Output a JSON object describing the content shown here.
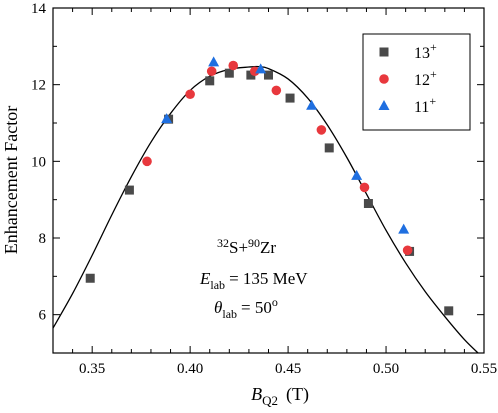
{
  "chart_data": {
    "type": "scatter",
    "xlabel": "B",
    "xlabel_sub": "Q2",
    "xlabel_unit": "(T)",
    "ylabel": "Enhancement Factor",
    "xlim": [
      0.33,
      0.55
    ],
    "ylim": [
      5,
      14
    ],
    "x_ticks": [
      0.35,
      0.4,
      0.45,
      0.5,
      0.55
    ],
    "x_tick_labels": [
      "0.35",
      "0.40",
      "0.45",
      "0.50",
      "0.55"
    ],
    "y_ticks": [
      6,
      8,
      10,
      12,
      14
    ],
    "y_tick_labels": [
      "6",
      "8",
      "10",
      "12",
      "14"
    ],
    "grid": false,
    "legend_position": "top-right",
    "series": [
      {
        "name": "13",
        "name_sup": "+",
        "marker": "square",
        "color": "#4a4a4a",
        "x": [
          0.349,
          0.369,
          0.389,
          0.41,
          0.42,
          0.431,
          0.44,
          0.451,
          0.471,
          0.491,
          0.512,
          0.532
        ],
        "y": [
          6.95,
          9.25,
          11.1,
          12.1,
          12.3,
          12.25,
          12.25,
          11.65,
          10.35,
          8.9,
          7.65,
          6.1
        ]
      },
      {
        "name": "12",
        "name_sup": "+",
        "marker": "circle",
        "color": "#e8383d",
        "x": [
          0.378,
          0.4,
          0.411,
          0.422,
          0.433,
          0.444,
          0.467,
          0.489,
          0.511
        ],
        "y": [
          10.0,
          11.75,
          12.35,
          12.5,
          12.35,
          11.85,
          10.82,
          9.32,
          7.68
        ]
      },
      {
        "name": "11",
        "name_sup": "+",
        "marker": "triangle",
        "color": "#1f6fe0",
        "x": [
          0.388,
          0.412,
          0.436,
          0.462,
          0.485,
          0.509
        ],
        "y": [
          11.1,
          12.58,
          12.4,
          11.45,
          9.62,
          8.22
        ]
      }
    ],
    "curve": {
      "x": [
        0.33,
        0.34,
        0.35,
        0.36,
        0.37,
        0.38,
        0.39,
        0.4,
        0.41,
        0.42,
        0.43,
        0.435,
        0.44,
        0.45,
        0.46,
        0.47,
        0.48,
        0.49,
        0.5,
        0.51,
        0.52,
        0.53,
        0.54,
        0.548
      ],
      "y": [
        5.65,
        6.55,
        7.55,
        8.6,
        9.6,
        10.5,
        11.25,
        11.85,
        12.22,
        12.4,
        12.46,
        12.47,
        12.42,
        12.15,
        11.65,
        10.95,
        10.1,
        9.15,
        8.2,
        7.35,
        6.6,
        5.95,
        5.35,
        4.95
      ]
    }
  },
  "annotation": {
    "line1_pre_sup": "32",
    "line1_a": "S+",
    "line1_mid_sup": "90",
    "line1_b": "Zr",
    "line2_symbol": "E",
    "line2_sub": "lab",
    "line2_value": "= 135 MeV",
    "line3_symbol": "θ",
    "line3_sub": "lab",
    "line3_value": "= 50",
    "line3_sup": "o"
  }
}
